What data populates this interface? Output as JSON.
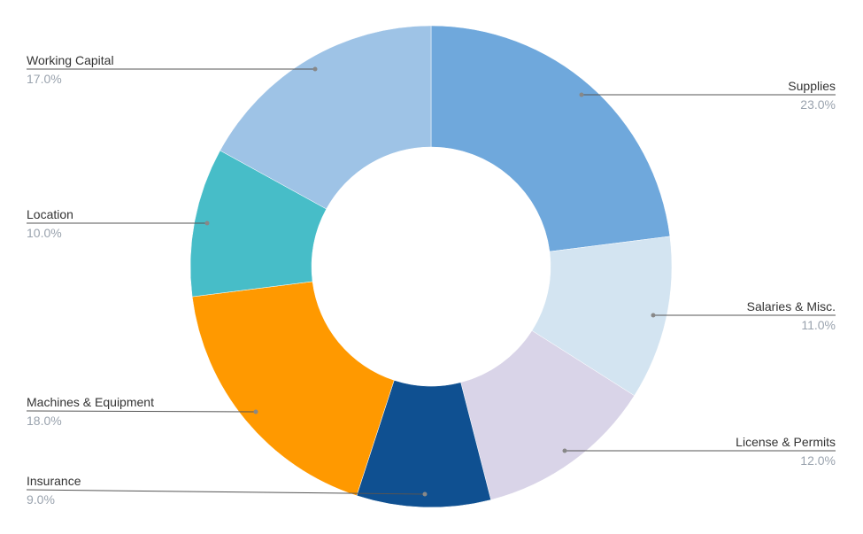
{
  "chart_data": {
    "type": "pie",
    "donut": true,
    "title": "",
    "slices": [
      {
        "label": "Supplies",
        "value": 23.0,
        "percent_text": "23.0%",
        "color": "#6fa8dc"
      },
      {
        "label": "Salaries & Misc.",
        "value": 11.0,
        "percent_text": "11.0%",
        "color": "#d3e4f1"
      },
      {
        "label": "License & Permits",
        "value": 12.0,
        "percent_text": "12.0%",
        "color": "#d9d4e8"
      },
      {
        "label": "Insurance",
        "value": 9.0,
        "percent_text": "9.0%",
        "color": "#0f5091"
      },
      {
        "label": "Machines & Equipment",
        "value": 18.0,
        "percent_text": "18.0%",
        "color": "#ff9900"
      },
      {
        "label": "Location",
        "value": 10.0,
        "percent_text": "10.0%",
        "color": "#47bdc8"
      },
      {
        "label": "Working Capital",
        "value": 17.0,
        "percent_text": "17.0%",
        "color": "#9ec3e6"
      }
    ],
    "label_style": "callout-lines",
    "legend": "none"
  }
}
